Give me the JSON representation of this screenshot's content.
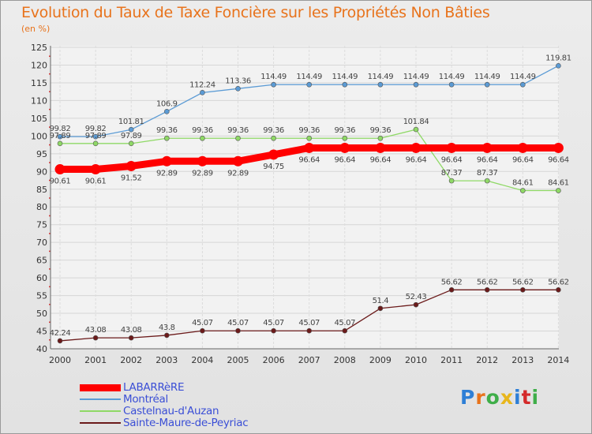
{
  "header": {
    "title": "Evolution du Taux de Taxe Foncière sur les Propriétés Non Bâties",
    "subtitle": "(en %)"
  },
  "brand": {
    "text": "Proxiti",
    "colors": [
      "#2e7fd6",
      "#e8731c",
      "#3fae49",
      "#e8b61c",
      "#2e7fd6",
      "#d42a2a",
      "#3fae49"
    ]
  },
  "chart_data": {
    "type": "line",
    "title": "Evolution du Taux de Taxe Foncière sur les Propriétés Non Bâties",
    "ylabel": "(en %)",
    "x": [
      "2000",
      "2001",
      "2002",
      "2003",
      "2004",
      "2005",
      "2006",
      "2007",
      "2008",
      "2009",
      "2010",
      "2011",
      "2012",
      "2013",
      "2014"
    ],
    "ylim": [
      40,
      125
    ],
    "yticks": [
      40,
      45,
      50,
      55,
      60,
      65,
      70,
      75,
      80,
      85,
      90,
      95,
      100,
      105,
      110,
      115,
      120,
      125
    ],
    "grid": true,
    "legend_position": "bottom-left",
    "series": [
      {
        "name": "LABARRèRE",
        "color": "#ff0000",
        "style": "thick",
        "values": [
          90.61,
          90.61,
          91.52,
          92.89,
          92.89,
          92.89,
          94.75,
          96.64,
          96.64,
          96.64,
          96.64,
          96.64,
          96.64,
          96.64,
          96.64
        ]
      },
      {
        "name": "Montréal",
        "color": "#5b9bd5",
        "style": "thin",
        "values": [
          99.82,
          99.82,
          101.81,
          106.9,
          112.24,
          113.36,
          114.49,
          114.49,
          114.49,
          114.49,
          114.49,
          114.49,
          114.49,
          114.49,
          119.81
        ]
      },
      {
        "name": "Castelnau-d'Auzan",
        "color": "#8fd966",
        "style": "thin",
        "values": [
          97.89,
          97.89,
          97.89,
          99.36,
          99.36,
          99.36,
          99.36,
          99.36,
          99.36,
          99.36,
          101.84,
          87.37,
          87.37,
          84.61,
          84.61
        ]
      },
      {
        "name": "Sainte-Maure-de-Peyriac",
        "color": "#6b1a1a",
        "style": "thin",
        "values": [
          42.24,
          43.08,
          43.08,
          43.8,
          45.07,
          45.07,
          45.07,
          45.07,
          45.07,
          51.4,
          52.43,
          56.62,
          56.62,
          56.62,
          56.62
        ]
      }
    ]
  }
}
